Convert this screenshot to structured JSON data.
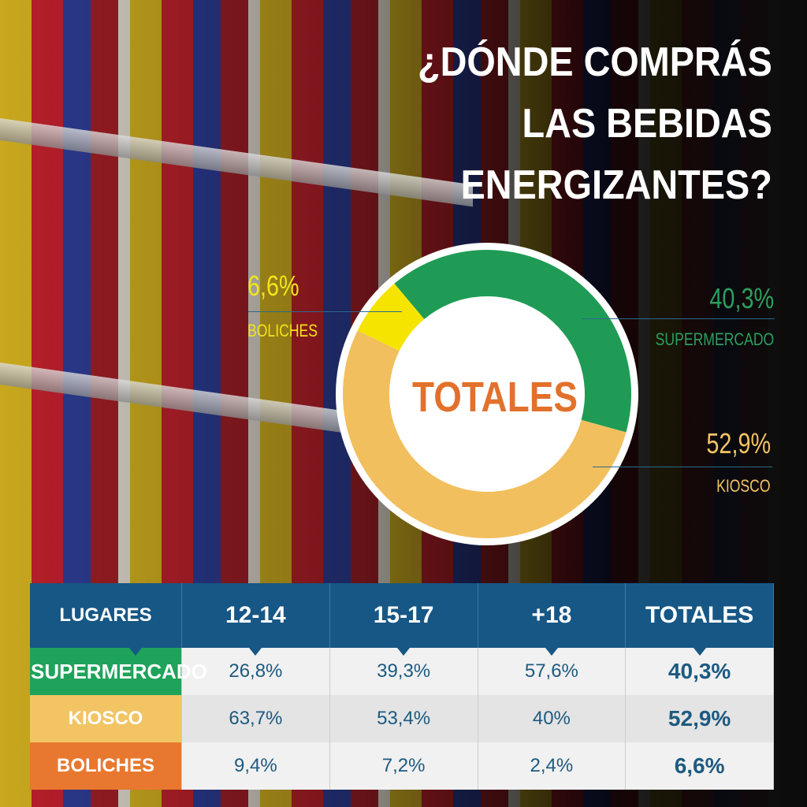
{
  "title": [
    "¿DÓNDE COMPRÁS",
    "LAS BEBIDAS",
    "ENERGIZANTES?"
  ],
  "chart_data": {
    "type": "pie",
    "center_label": "TOTALES",
    "categories": [
      "SUPERMERCADO",
      "KIOSCO",
      "BOLICHES"
    ],
    "values": [
      40.3,
      52.9,
      6.6
    ],
    "labels": [
      "40,3%",
      "52,9%",
      "6,6%"
    ],
    "colors": [
      "#1f9b55",
      "#f2bf5e",
      "#f5e400"
    ]
  },
  "table": {
    "headers": [
      "LUGARES",
      "12-14",
      "15-17",
      "+18",
      "TOTALES"
    ],
    "rows": [
      {
        "label": "SUPERMERCADO",
        "color": "#1fa35a",
        "cells": [
          "26,8%",
          "39,3%",
          "57,6%",
          "40,3%"
        ]
      },
      {
        "label": "KIOSCO",
        "color": "#f2c464",
        "cells": [
          "63,7%",
          "53,4%",
          "40%",
          "52,9%"
        ]
      },
      {
        "label": "BOLICHES",
        "color": "#e8782f",
        "cells": [
          "9,4%",
          "7,2%",
          "2,4%",
          "6,6%"
        ]
      }
    ]
  },
  "label_colors": {
    "SUPERMERCADO": "#2aa05d",
    "KIOSCO": "#f2c464",
    "BOLICHES": "#f3e31a"
  }
}
